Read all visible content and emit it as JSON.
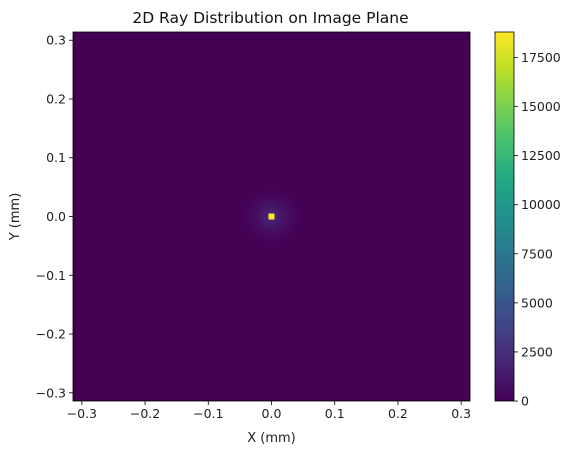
{
  "chart_data": {
    "type": "heatmap",
    "title": "2D Ray Distribution on Image Plane",
    "xlabel": "X (mm)",
    "ylabel": "Y (mm)",
    "xlim": [
      -0.314,
      0.314
    ],
    "ylim": [
      -0.314,
      0.314
    ],
    "x_ticks": [
      "−0.3",
      "−0.2",
      "−0.1",
      "0.0",
      "0.1",
      "0.2",
      "0.3"
    ],
    "x_tick_values": [
      -0.3,
      -0.2,
      -0.1,
      0.0,
      0.1,
      0.2,
      0.3
    ],
    "y_ticks": [
      "−0.3",
      "−0.2",
      "−0.1",
      "0.0",
      "0.1",
      "0.2",
      "0.3"
    ],
    "y_tick_values": [
      -0.3,
      -0.2,
      -0.1,
      0.0,
      0.1,
      0.2,
      0.3
    ],
    "colormap": "viridis",
    "colorbar": {
      "range": [
        0,
        18800
      ],
      "ticks": [
        "0",
        "2500",
        "5000",
        "7500",
        "10000",
        "12500",
        "15000",
        "17500"
      ],
      "tick_values": [
        0,
        2500,
        5000,
        7500,
        10000,
        12500,
        15000,
        17500
      ]
    },
    "peak": {
      "x": 0.0,
      "y": 0.0,
      "value": 18800
    },
    "halo_radius_mm": 0.06,
    "grid": false,
    "colors": {
      "low": "#440154",
      "peak": "#fde725"
    }
  }
}
